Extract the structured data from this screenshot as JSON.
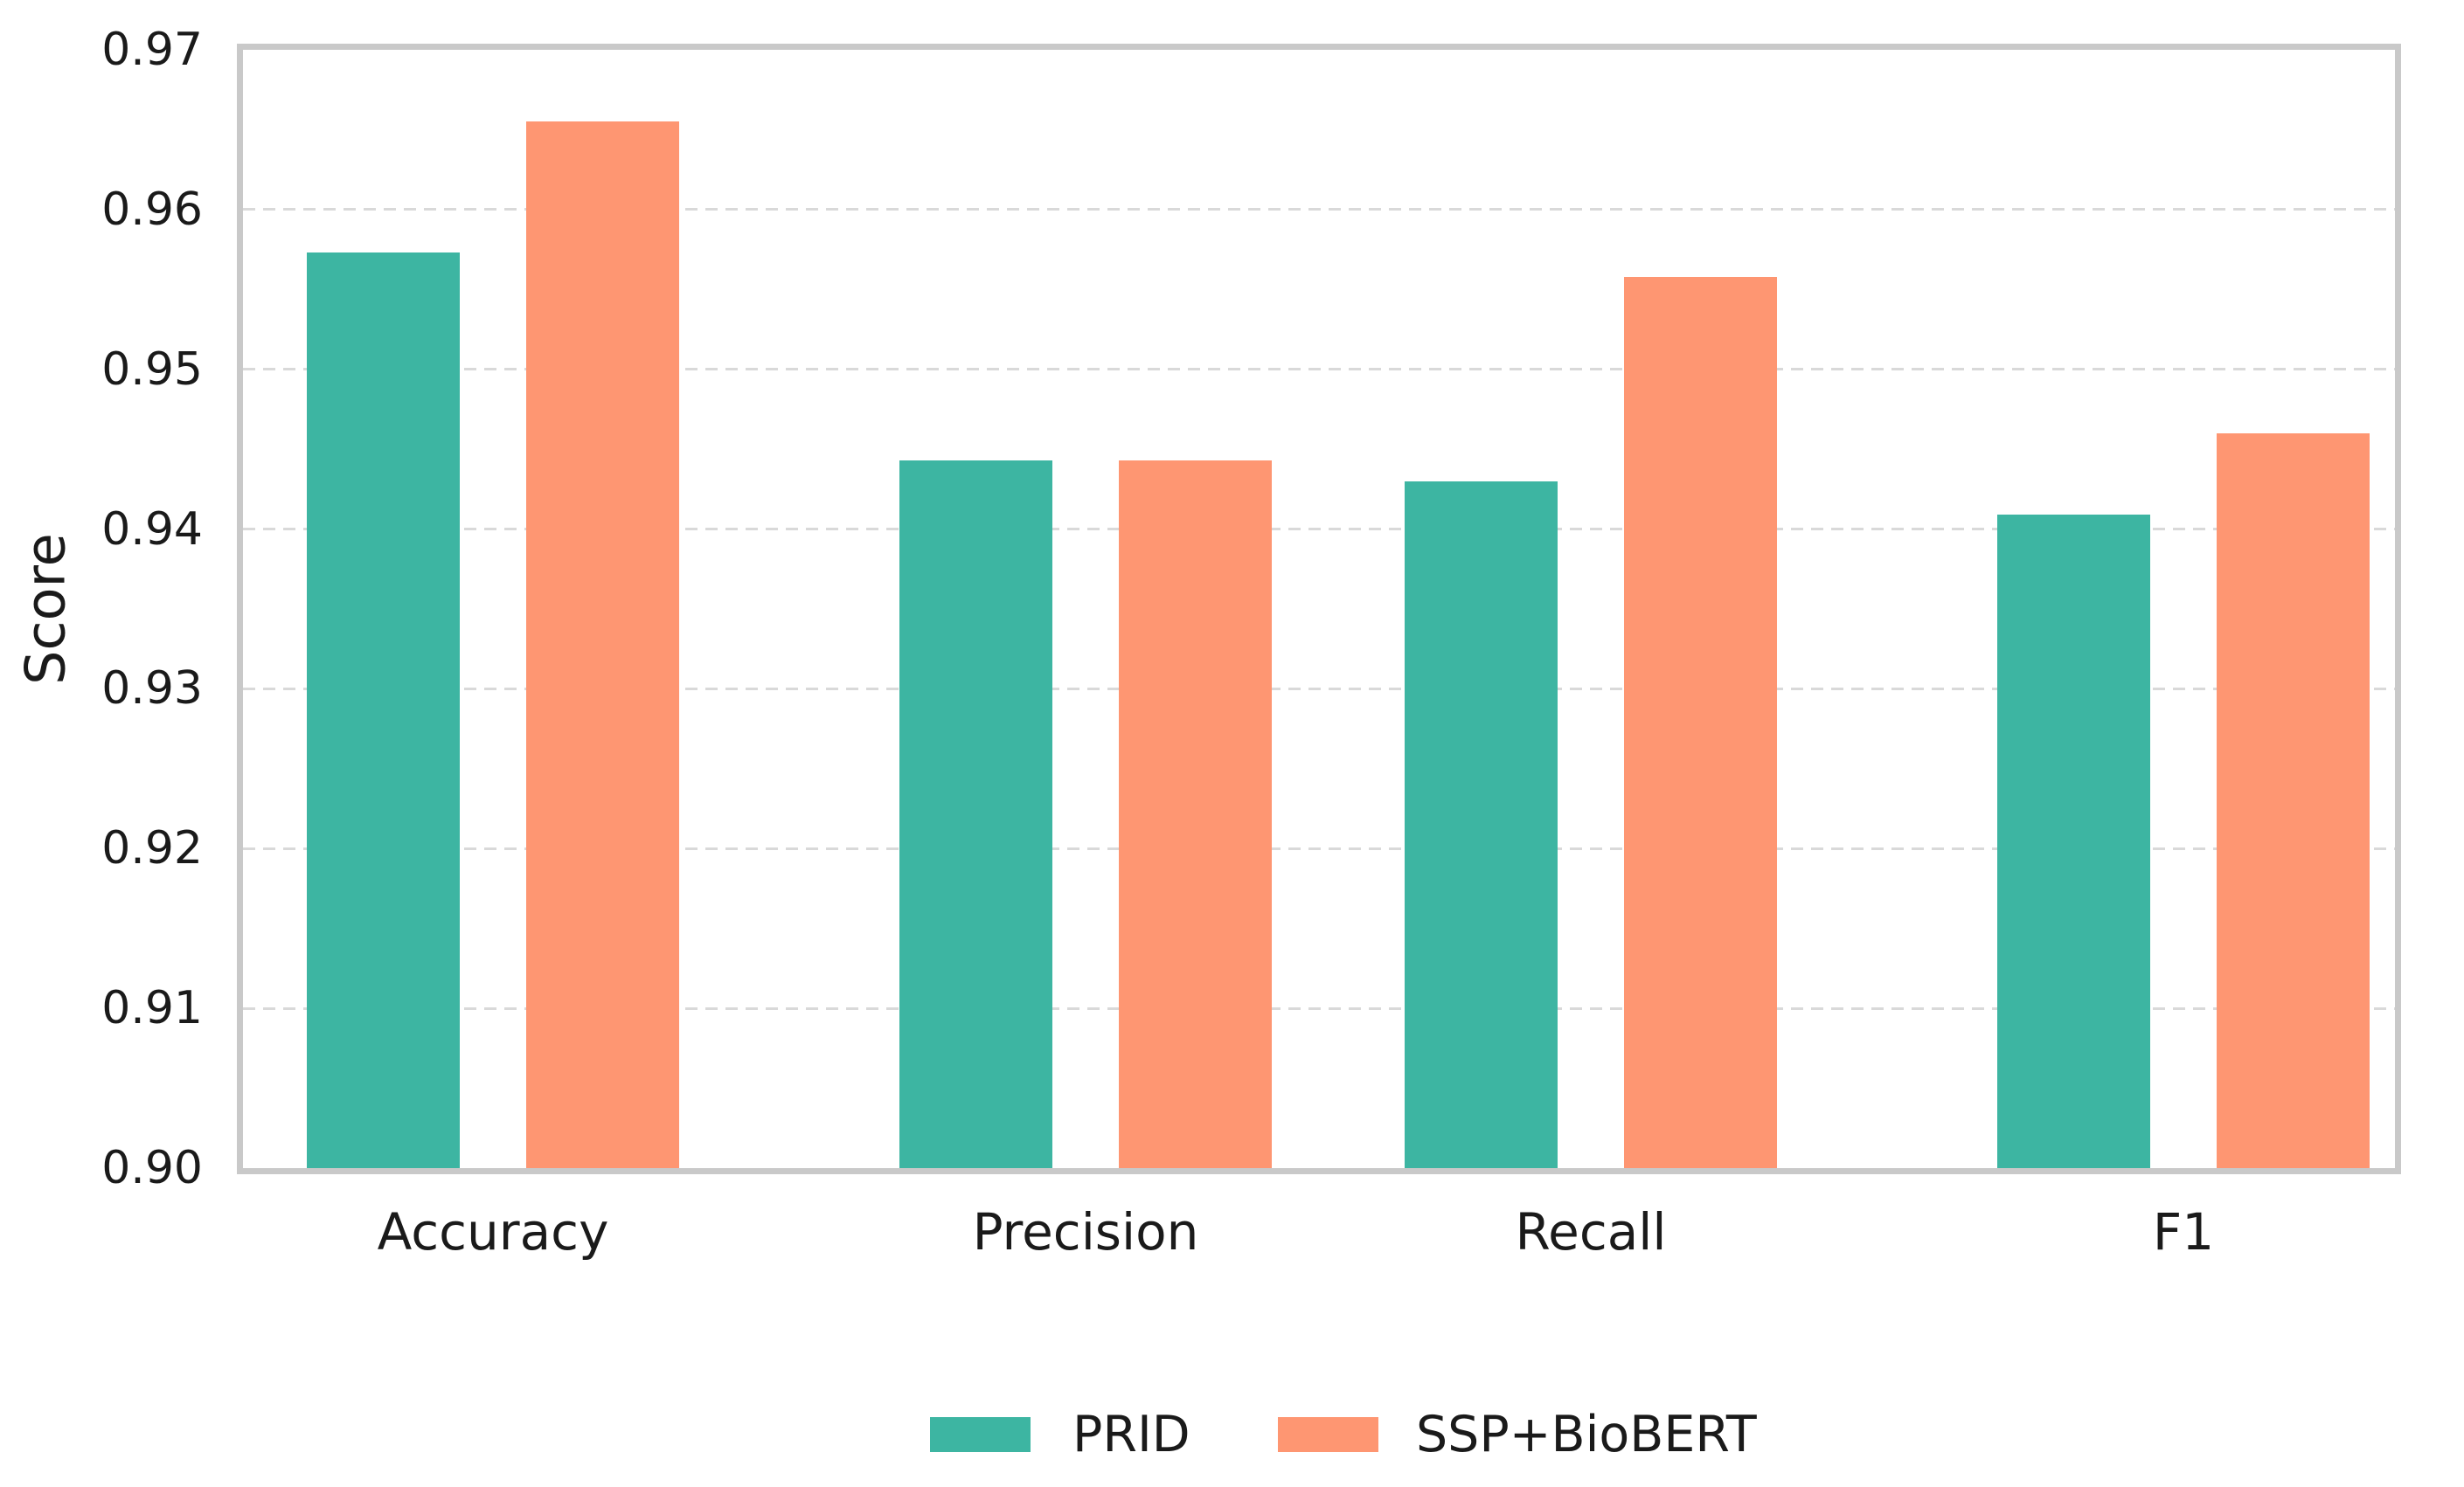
{
  "chart_data": {
    "type": "bar",
    "ylabel": "Score",
    "categories": [
      "Accuracy",
      "Precision",
      "Recall",
      "F1"
    ],
    "series": [
      {
        "name": "PRID",
        "color": "#3db5a2",
        "values": [
          0.9573,
          0.9443,
          0.943,
          0.9409
        ]
      },
      {
        "name": "SSP+BioBERT",
        "color": "#fe9672",
        "values": [
          0.9655,
          0.9443,
          0.9558,
          0.946
        ]
      }
    ],
    "ylim": [
      0.9,
      0.97
    ],
    "yticks": [
      "0.90",
      "0.91",
      "0.92",
      "0.93",
      "0.94",
      "0.95",
      "0.96",
      "0.97"
    ],
    "grid": "horizontal dashed gridlines",
    "legend_position": "bottom-center",
    "spine_color": "#c9c9c9",
    "gridline_color": "#d9d9d9"
  }
}
